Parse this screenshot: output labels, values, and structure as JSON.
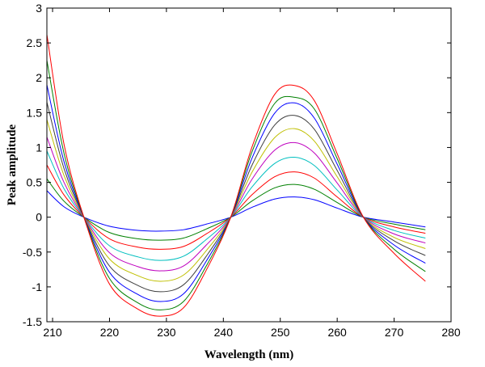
{
  "chart_data": {
    "type": "line",
    "title": "",
    "xlabel": "Wavelength (nm)",
    "ylabel": "Peak amplitude",
    "xlim": [
      209,
      280
    ],
    "ylim": [
      -1.5,
      3
    ],
    "xticks": [
      210,
      220,
      230,
      240,
      250,
      260,
      270,
      280
    ],
    "xtick_labels": [
      "210",
      "220",
      "230",
      "240",
      "250",
      "260",
      "270",
      "280"
    ],
    "yticks": [
      -1.5,
      -1,
      -0.5,
      0,
      0.5,
      1,
      1.5,
      2,
      2.5,
      3
    ],
    "ytick_labels": [
      "-1.5",
      "-1",
      "-0.5",
      "0",
      "0.5",
      "1",
      "1.5",
      "2",
      "2.5",
      "3"
    ],
    "grid": false,
    "legend": "none",
    "x": [
      209,
      212,
      215.5,
      220,
      225,
      229,
      233,
      237,
      241.3,
      245,
      249,
      252.5,
      256,
      260,
      264.6,
      270,
      275.5
    ],
    "series": [
      {
        "color": "#0000ff",
        "values": [
          0.38,
          0.15,
          0.0,
          -0.13,
          -0.19,
          -0.2,
          -0.18,
          -0.1,
          0.0,
          0.14,
          0.26,
          0.29,
          0.25,
          0.13,
          0.0,
          -0.07,
          -0.14
        ]
      },
      {
        "color": "#008000",
        "values": [
          0.55,
          0.23,
          0.0,
          -0.22,
          -0.31,
          -0.33,
          -0.3,
          -0.17,
          0.0,
          0.23,
          0.42,
          0.47,
          0.4,
          0.21,
          0.0,
          -0.1,
          -0.18
        ]
      },
      {
        "color": "#ff0000",
        "values": [
          0.75,
          0.32,
          0.0,
          -0.31,
          -0.43,
          -0.46,
          -0.42,
          -0.24,
          0.0,
          0.32,
          0.58,
          0.65,
          0.56,
          0.29,
          0.0,
          -0.14,
          -0.23
        ]
      },
      {
        "color": "#00bfbf",
        "values": [
          0.95,
          0.41,
          0.0,
          -0.41,
          -0.57,
          -0.62,
          -0.56,
          -0.32,
          0.0,
          0.43,
          0.77,
          0.86,
          0.74,
          0.39,
          0.0,
          -0.19,
          -0.3
        ]
      },
      {
        "color": "#bf00bf",
        "values": [
          1.15,
          0.5,
          0.0,
          -0.51,
          -0.71,
          -0.77,
          -0.7,
          -0.4,
          0.0,
          0.54,
          0.96,
          1.07,
          0.92,
          0.49,
          0.0,
          -0.24,
          -0.37
        ]
      },
      {
        "color": "#bfbf00",
        "values": [
          1.4,
          0.6,
          0.0,
          -0.6,
          -0.84,
          -0.92,
          -0.83,
          -0.48,
          0.0,
          0.64,
          1.14,
          1.27,
          1.09,
          0.58,
          0.0,
          -0.29,
          -0.45
        ]
      },
      {
        "color": "#404040",
        "values": [
          1.65,
          0.7,
          0.0,
          -0.7,
          -0.98,
          -1.07,
          -0.97,
          -0.56,
          0.0,
          0.74,
          1.32,
          1.46,
          1.26,
          0.67,
          0.0,
          -0.34,
          -0.55
        ]
      },
      {
        "color": "#0000ff",
        "values": [
          1.9,
          0.8,
          0.0,
          -0.79,
          -1.11,
          -1.21,
          -1.1,
          -0.63,
          0.0,
          0.84,
          1.49,
          1.64,
          1.42,
          0.76,
          0.0,
          -0.4,
          -0.66
        ]
      },
      {
        "color": "#008000",
        "values": [
          2.25,
          0.92,
          0.0,
          -0.88,
          -1.23,
          -1.33,
          -1.21,
          -0.7,
          0.0,
          0.93,
          1.63,
          1.72,
          1.55,
          0.84,
          0.0,
          -0.46,
          -0.78
        ]
      },
      {
        "color": "#ff0000",
        "values": [
          2.62,
          1.05,
          0.0,
          -0.96,
          -1.32,
          -1.42,
          -1.3,
          -0.76,
          0.0,
          1.0,
          1.76,
          1.89,
          1.67,
          0.91,
          0.0,
          -0.52,
          -0.92
        ]
      }
    ]
  }
}
